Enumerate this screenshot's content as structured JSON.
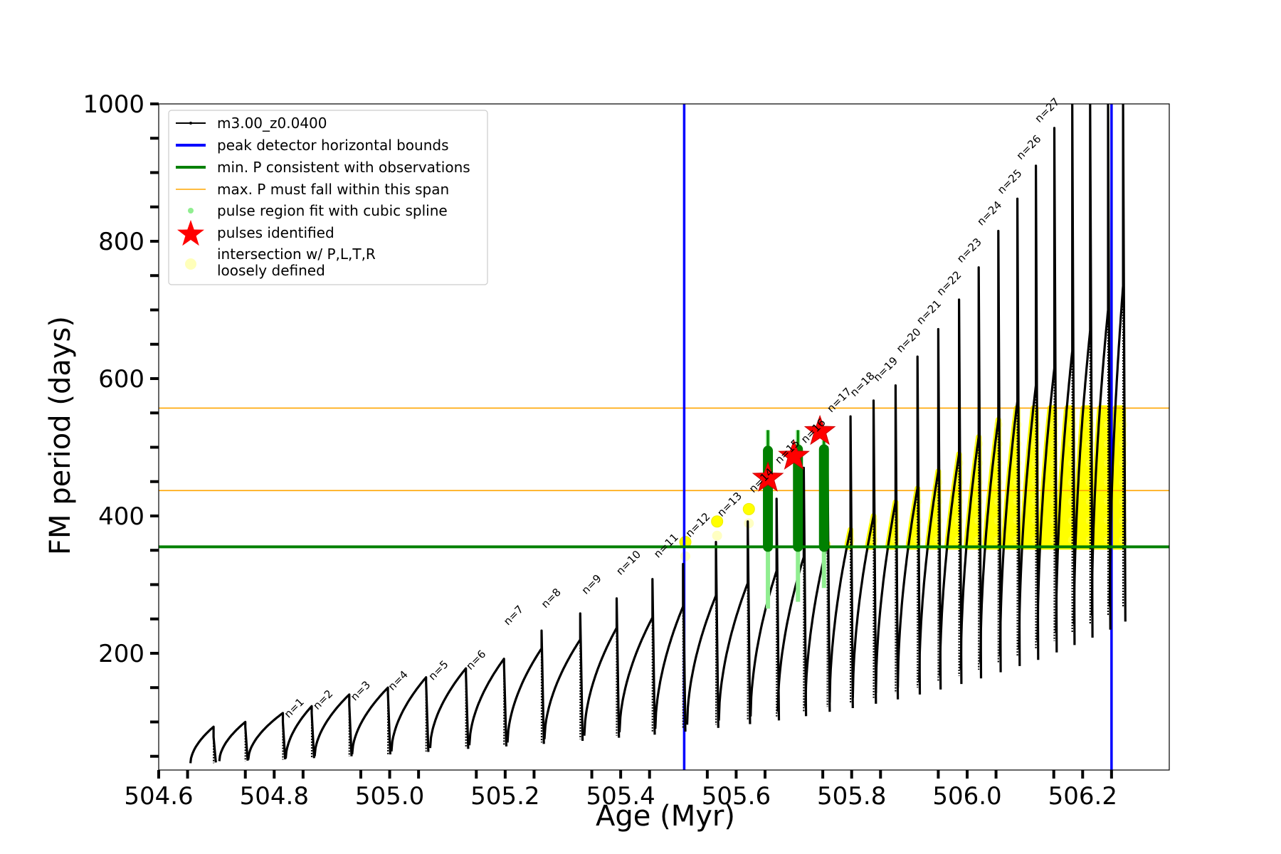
{
  "chart_data": {
    "type": "line",
    "xlabel": "Age (Myr)",
    "ylabel": "FM period (days)",
    "xlim": [
      504.6,
      506.35
    ],
    "ylim": [
      30,
      1000
    ],
    "x_ticks": [
      504.6,
      504.8,
      505.0,
      505.2,
      505.4,
      505.6,
      505.8,
      506.0,
      506.2
    ],
    "x_tick_labels": [
      "504.6",
      "504.8",
      "505.0",
      "505.2",
      "505.4",
      "505.6",
      "505.8",
      "506.0",
      "506.2"
    ],
    "y_ticks": [
      200,
      400,
      600,
      800,
      1000
    ],
    "y_tick_labels": [
      "200",
      "400",
      "600",
      "800",
      "1000"
    ],
    "grid": false,
    "legend_position": "top-left",
    "legend": [
      {
        "label": "m3.00_z0.0400",
        "kind": "line-marker",
        "color": "#000000"
      },
      {
        "label": "peak detector horizontal bounds",
        "kind": "line",
        "color": "#0000ff"
      },
      {
        "label": "min. P consistent with observations",
        "kind": "line",
        "color": "#008000"
      },
      {
        "label": "max. P must fall within this span",
        "kind": "thin-line",
        "color": "#ffa500"
      },
      {
        "label": "pulse region fit with cubic spline",
        "kind": "dot",
        "color": "#90ee90"
      },
      {
        "label": "pulses identified",
        "kind": "star",
        "color": "#ff0000"
      },
      {
        "label": "intersection w/ P,L,T,R",
        "label2": "loosely defined",
        "kind": "faint-dot",
        "color": "#ffff66"
      }
    ],
    "vertical_lines": {
      "color": "#0000ff",
      "x": [
        505.51,
        506.25
      ]
    },
    "min_period_line": {
      "color": "#008000",
      "y": 355
    },
    "max_period_span": {
      "color": "#ffa500",
      "y": [
        437,
        557
      ]
    },
    "series": [
      {
        "name": "m3.00_z0.0400",
        "color": "#000000",
        "cycles": [
          {
            "n": 0,
            "start": 504.655,
            "end": 504.695,
            "base": 40,
            "peak": 93,
            "spike": 78
          },
          {
            "n": 1,
            "start": 504.705,
            "end": 504.75,
            "base": 43,
            "peak": 100,
            "spike": 93
          },
          {
            "n": 2,
            "start": 504.755,
            "end": 504.815,
            "base": 45,
            "peak": 113,
            "spike": 100
          },
          {
            "n": 3,
            "start": 504.82,
            "end": 504.865,
            "base": 47,
            "peak": 123,
            "spike": 113
          },
          {
            "n": 4,
            "start": 504.87,
            "end": 504.93,
            "base": 50,
            "peak": 140,
            "spike": 125
          },
          {
            "n": 5,
            "start": 504.935,
            "end": 504.997,
            "base": 53,
            "peak": 150,
            "spike": 142
          },
          {
            "n": 6,
            "start": 505.003,
            "end": 505.063,
            "base": 57,
            "peak": 165,
            "spike": 158
          },
          {
            "n": 7,
            "start": 505.07,
            "end": 505.132,
            "base": 62,
            "peak": 178,
            "spike": 170
          },
          {
            "n": 8,
            "start": 505.138,
            "end": 505.198,
            "base": 66,
            "peak": 192,
            "spike": 185
          },
          {
            "n": 9,
            "start": 505.204,
            "end": 505.263,
            "base": 70,
            "peak": 207,
            "spike": 233
          },
          {
            "n": 10,
            "start": 505.268,
            "end": 505.33,
            "base": 75,
            "peak": 220,
            "spike": 258
          },
          {
            "n": 11,
            "start": 505.337,
            "end": 505.393,
            "base": 80,
            "peak": 237,
            "spike": 280
          },
          {
            "n": 12,
            "start": 505.398,
            "end": 505.455,
            "base": 85,
            "peak": 252,
            "spike": 308
          },
          {
            "n": 13,
            "start": 505.46,
            "end": 505.508,
            "base": 90,
            "peak": 268,
            "spike": 330
          },
          {
            "n": 14,
            "start": 505.515,
            "end": 505.565,
            "base": 96,
            "peak": 284,
            "spike": 362
          },
          {
            "n": 15,
            "start": 505.57,
            "end": 505.62,
            "base": 102,
            "peak": 302,
            "spike": 392
          },
          {
            "n": 16,
            "start": 505.625,
            "end": 505.67,
            "base": 108,
            "peak": 320,
            "spike": 425
          },
          {
            "n": 17,
            "start": 505.672,
            "end": 505.717,
            "base": 115,
            "peak": 340,
            "spike": 470
          },
          {
            "n": 18,
            "start": 505.72,
            "end": 505.758,
            "base": 122,
            "peak": 360,
            "spike": 500
          },
          {
            "n": 19,
            "start": 505.762,
            "end": 505.798,
            "base": 128,
            "peak": 380,
            "spike": 545
          },
          {
            "n": 20,
            "start": 505.802,
            "end": 505.838,
            "base": 135,
            "peak": 400,
            "spike": 568
          },
          {
            "n": 21,
            "start": 505.842,
            "end": 505.876,
            "base": 142,
            "peak": 420,
            "spike": 590
          },
          {
            "n": 22,
            "start": 505.88,
            "end": 505.914,
            "base": 150,
            "peak": 440,
            "spike": 632
          },
          {
            "n": 23,
            "start": 505.917,
            "end": 505.95,
            "base": 158,
            "peak": 465,
            "spike": 672
          },
          {
            "n": 24,
            "start": 505.953,
            "end": 505.986,
            "base": 167,
            "peak": 490,
            "spike": 715
          },
          {
            "n": 25,
            "start": 505.989,
            "end": 506.02,
            "base": 176,
            "peak": 515,
            "spike": 762
          },
          {
            "n": 26,
            "start": 506.023,
            "end": 506.054,
            "base": 186,
            "peak": 540,
            "spike": 815
          },
          {
            "n": 27,
            "start": 506.057,
            "end": 506.087,
            "base": 196,
            "peak": 567,
            "spike": 862
          },
          {
            "n": 28,
            "start": 506.09,
            "end": 506.119,
            "base": 206,
            "peak": 590,
            "spike": 910
          },
          {
            "n": 29,
            "start": 506.122,
            "end": 506.151,
            "base": 218,
            "peak": 615,
            "spike": 965
          },
          {
            "n": 30,
            "start": 506.154,
            "end": 506.182,
            "base": 230,
            "peak": 640,
            "spike": 1000
          },
          {
            "n": 31,
            "start": 506.185,
            "end": 506.213,
            "base": 242,
            "peak": 670,
            "spike": 1000
          },
          {
            "n": 32,
            "start": 506.216,
            "end": 506.244,
            "base": 255,
            "peak": 700,
            "spike": 1000
          },
          {
            "n": 33,
            "start": 506.247,
            "end": 506.27,
            "base": 268,
            "peak": 735,
            "spike": 1000
          }
        ]
      }
    ],
    "pulse_labels": [
      {
        "text": "n=1",
        "x": 504.825,
        "y": 105
      },
      {
        "text": "n=2",
        "x": 504.875,
        "y": 117
      },
      {
        "text": "n=3",
        "x": 504.94,
        "y": 130
      },
      {
        "text": "n=4",
        "x": 505.005,
        "y": 145
      },
      {
        "text": "n=5",
        "x": 505.075,
        "y": 160
      },
      {
        "text": "n=6",
        "x": 505.14,
        "y": 175
      },
      {
        "text": "n=7",
        "x": 505.205,
        "y": 240
      },
      {
        "text": "n=8",
        "x": 505.27,
        "y": 265
      },
      {
        "text": "n=9",
        "x": 505.34,
        "y": 285
      },
      {
        "text": "n=10",
        "x": 505.4,
        "y": 313
      },
      {
        "text": "n=11",
        "x": 505.465,
        "y": 338
      },
      {
        "text": "n=12",
        "x": 505.52,
        "y": 368
      },
      {
        "text": "n=13",
        "x": 505.575,
        "y": 398
      },
      {
        "text": "n=14",
        "x": 505.63,
        "y": 433
      },
      {
        "text": "n=15",
        "x": 505.675,
        "y": 475
      },
      {
        "text": "n=16",
        "x": 505.72,
        "y": 505
      },
      {
        "text": "n=17",
        "x": 505.765,
        "y": 550
      },
      {
        "text": "n=18",
        "x": 505.805,
        "y": 573
      },
      {
        "text": "n=19",
        "x": 505.845,
        "y": 595
      },
      {
        "text": "n=20",
        "x": 505.885,
        "y": 637
      },
      {
        "text": "n=21",
        "x": 505.92,
        "y": 678
      },
      {
        "text": "n=22",
        "x": 505.955,
        "y": 720
      },
      {
        "text": "n=23",
        "x": 505.99,
        "y": 768
      },
      {
        "text": "n=24",
        "x": 506.025,
        "y": 822
      },
      {
        "text": "n=25",
        "x": 506.06,
        "y": 868
      },
      {
        "text": "n=26",
        "x": 506.093,
        "y": 918
      },
      {
        "text": "n=27",
        "x": 506.125,
        "y": 972
      }
    ],
    "pulses_identified": [
      {
        "x": 505.655,
        "y": 455
      },
      {
        "x": 505.7,
        "y": 487
      },
      {
        "x": 505.745,
        "y": 523
      }
    ],
    "spline_regions": [
      {
        "x": 505.655,
        "y_low": 265,
        "y_high": 525,
        "dense_low": 355,
        "dense_high": 495
      },
      {
        "x": 505.707,
        "y_low": 275,
        "y_high": 525,
        "dense_low": 355,
        "dense_high": 497
      },
      {
        "x": 505.752,
        "y_low": 295,
        "y_high": 515,
        "dense_low": 355,
        "dense_high": 497
      }
    ],
    "intersection_points": [
      {
        "x": 505.512,
        "y": 362
      },
      {
        "x": 505.567,
        "y": 392
      },
      {
        "x": 505.622,
        "y": 410
      }
    ]
  }
}
